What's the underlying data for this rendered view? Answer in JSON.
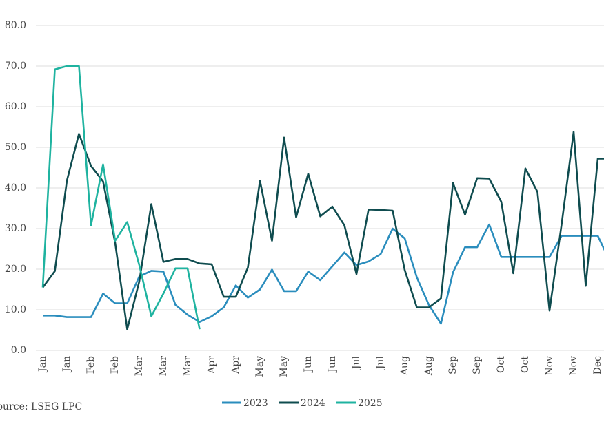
{
  "chart_data": {
    "type": "line",
    "source": "Source:  LSEG LPC",
    "categories": [
      "Jan",
      null,
      "Jan",
      null,
      "Feb",
      null,
      "Feb",
      null,
      "Mar",
      null,
      "Mar",
      null,
      "Mar",
      null,
      "Apr",
      null,
      "Apr",
      null,
      "May",
      null,
      "May",
      null,
      "Jun",
      null,
      "Jun",
      null,
      "Jul",
      null,
      "Jul",
      null,
      "Aug",
      null,
      "Aug",
      null,
      "Sep",
      null,
      "Sep",
      null,
      "Oct",
      null,
      "Oct",
      null,
      "Nov",
      null,
      "Nov",
      null,
      "Dec",
      null
    ],
    "series": [
      {
        "name": "2023",
        "color": "#2a8dbd",
        "values": [
          8.6,
          8.6,
          8.2,
          8.2,
          8.2,
          14.0,
          11.6,
          11.6,
          18.2,
          19.6,
          19.4,
          11.2,
          8.8,
          7.0,
          8.4,
          10.6,
          16.0,
          13.0,
          15.0,
          19.9,
          14.6,
          14.6,
          19.4,
          17.3,
          20.7,
          24.1,
          21.0,
          21.9,
          23.7,
          30.0,
          27.6,
          18.0,
          11.2,
          6.6,
          19.2,
          25.4,
          25.4,
          31.0,
          23.0,
          23.0,
          23.0,
          23.0,
          23.0,
          28.2,
          28.2,
          28.2,
          28.2,
          22.0
        ]
      },
      {
        "name": "2024",
        "color": "#0f4c4f",
        "values": [
          15.5,
          19.5,
          41.8,
          53.3,
          45.4,
          41.6,
          26.5,
          5.2,
          17.0,
          36.0,
          21.8,
          22.5,
          22.5,
          21.4,
          21.2,
          13.2,
          13.2,
          20.4,
          41.8,
          27.0,
          52.4,
          32.8,
          43.5,
          33.0,
          35.4,
          30.8,
          18.8,
          34.7,
          34.6,
          34.4,
          19.8,
          10.6,
          10.6,
          12.8,
          41.2,
          33.4,
          42.4,
          42.3,
          36.6,
          19.0,
          44.8,
          39.0,
          9.8,
          31.0,
          53.8,
          15.9,
          47.2,
          47.2
        ]
      },
      {
        "name": "2025",
        "color": "#1fb3a0",
        "values": [
          15.5,
          69.2,
          70.0,
          70.0,
          30.8,
          45.8,
          27.0,
          31.6,
          21.0,
          8.4,
          14.0,
          20.2,
          20.2,
          5.2,
          null,
          null,
          null,
          null,
          null,
          null,
          null,
          null,
          null,
          null,
          null,
          null,
          null,
          null,
          null,
          null,
          null,
          null,
          null,
          null,
          null,
          null,
          null,
          null,
          null,
          null,
          null,
          null,
          null,
          null,
          null,
          null,
          null,
          null
        ]
      }
    ],
    "ylim": [
      0,
      80
    ],
    "yticks": [
      {
        "value": 0,
        "label": "0.0"
      },
      {
        "value": 10,
        "label": "10.0"
      },
      {
        "value": 20,
        "label": "20.0"
      },
      {
        "value": 30,
        "label": "30.0"
      },
      {
        "value": 40,
        "label": "40.0"
      },
      {
        "value": 50,
        "label": "50.0"
      },
      {
        "value": 60,
        "label": "60.0"
      },
      {
        "value": 70,
        "label": "70.0"
      },
      {
        "value": 80,
        "label": "80.0"
      }
    ],
    "grid": true,
    "legend": "bottom"
  }
}
